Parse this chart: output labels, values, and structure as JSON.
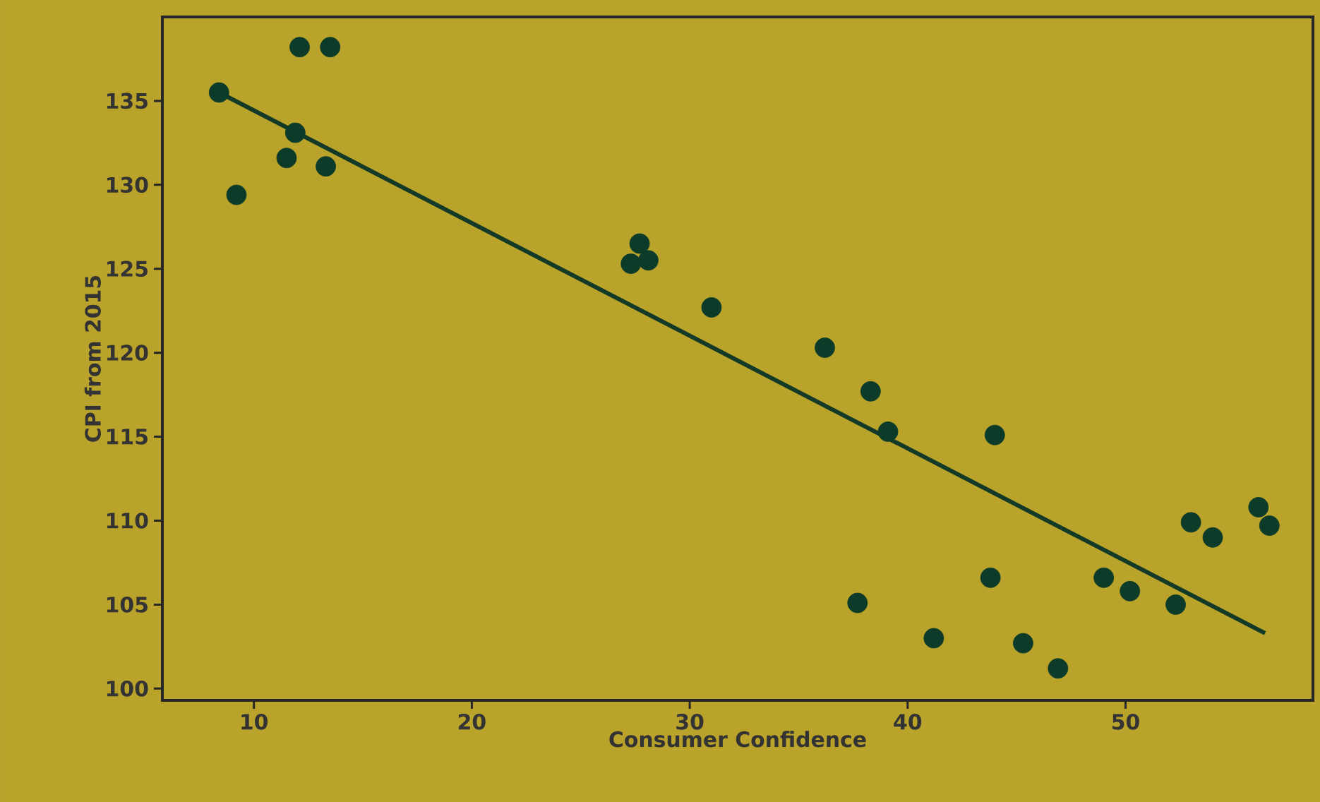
{
  "chart_data": {
    "type": "scatter",
    "xlabel": "Consumer Confidence",
    "ylabel": "CPI from 2015",
    "xlim": [
      5.8,
      58.6
    ],
    "ylim": [
      99.3,
      140
    ],
    "xticks": [
      10,
      20,
      30,
      40,
      50
    ],
    "yticks": [
      100,
      105,
      110,
      115,
      120,
      125,
      130,
      135
    ],
    "series": [
      {
        "color": "#0d3b2a",
        "marker": "circle",
        "x": [
          8.4,
          9.2,
          12.1,
          13.5,
          11.9,
          11.5,
          13.3,
          27.7,
          27.3,
          28.1,
          31.0,
          36.2,
          38.3,
          39.1,
          44.0,
          37.7,
          43.8,
          41.2,
          45.3,
          46.9,
          49.0,
          50.2,
          52.3,
          53.0,
          54.0,
          56.1,
          56.6
        ],
        "values": [
          135.5,
          129.4,
          138.2,
          138.2,
          133.1,
          131.6,
          131.1,
          126.5,
          125.3,
          125.5,
          122.7,
          120.3,
          117.7,
          115.3,
          115.1,
          105.1,
          106.6,
          103.0,
          102.7,
          101.2,
          106.6,
          105.8,
          105.0,
          109.9,
          109.0,
          110.8,
          109.7
        ]
      },
      {
        "type": "line",
        "color": "#123a26",
        "marker": "none",
        "line_style": "solid",
        "x": [
          8.7,
          56.4
        ],
        "values": [
          135.3,
          103.3
        ]
      }
    ]
  }
}
